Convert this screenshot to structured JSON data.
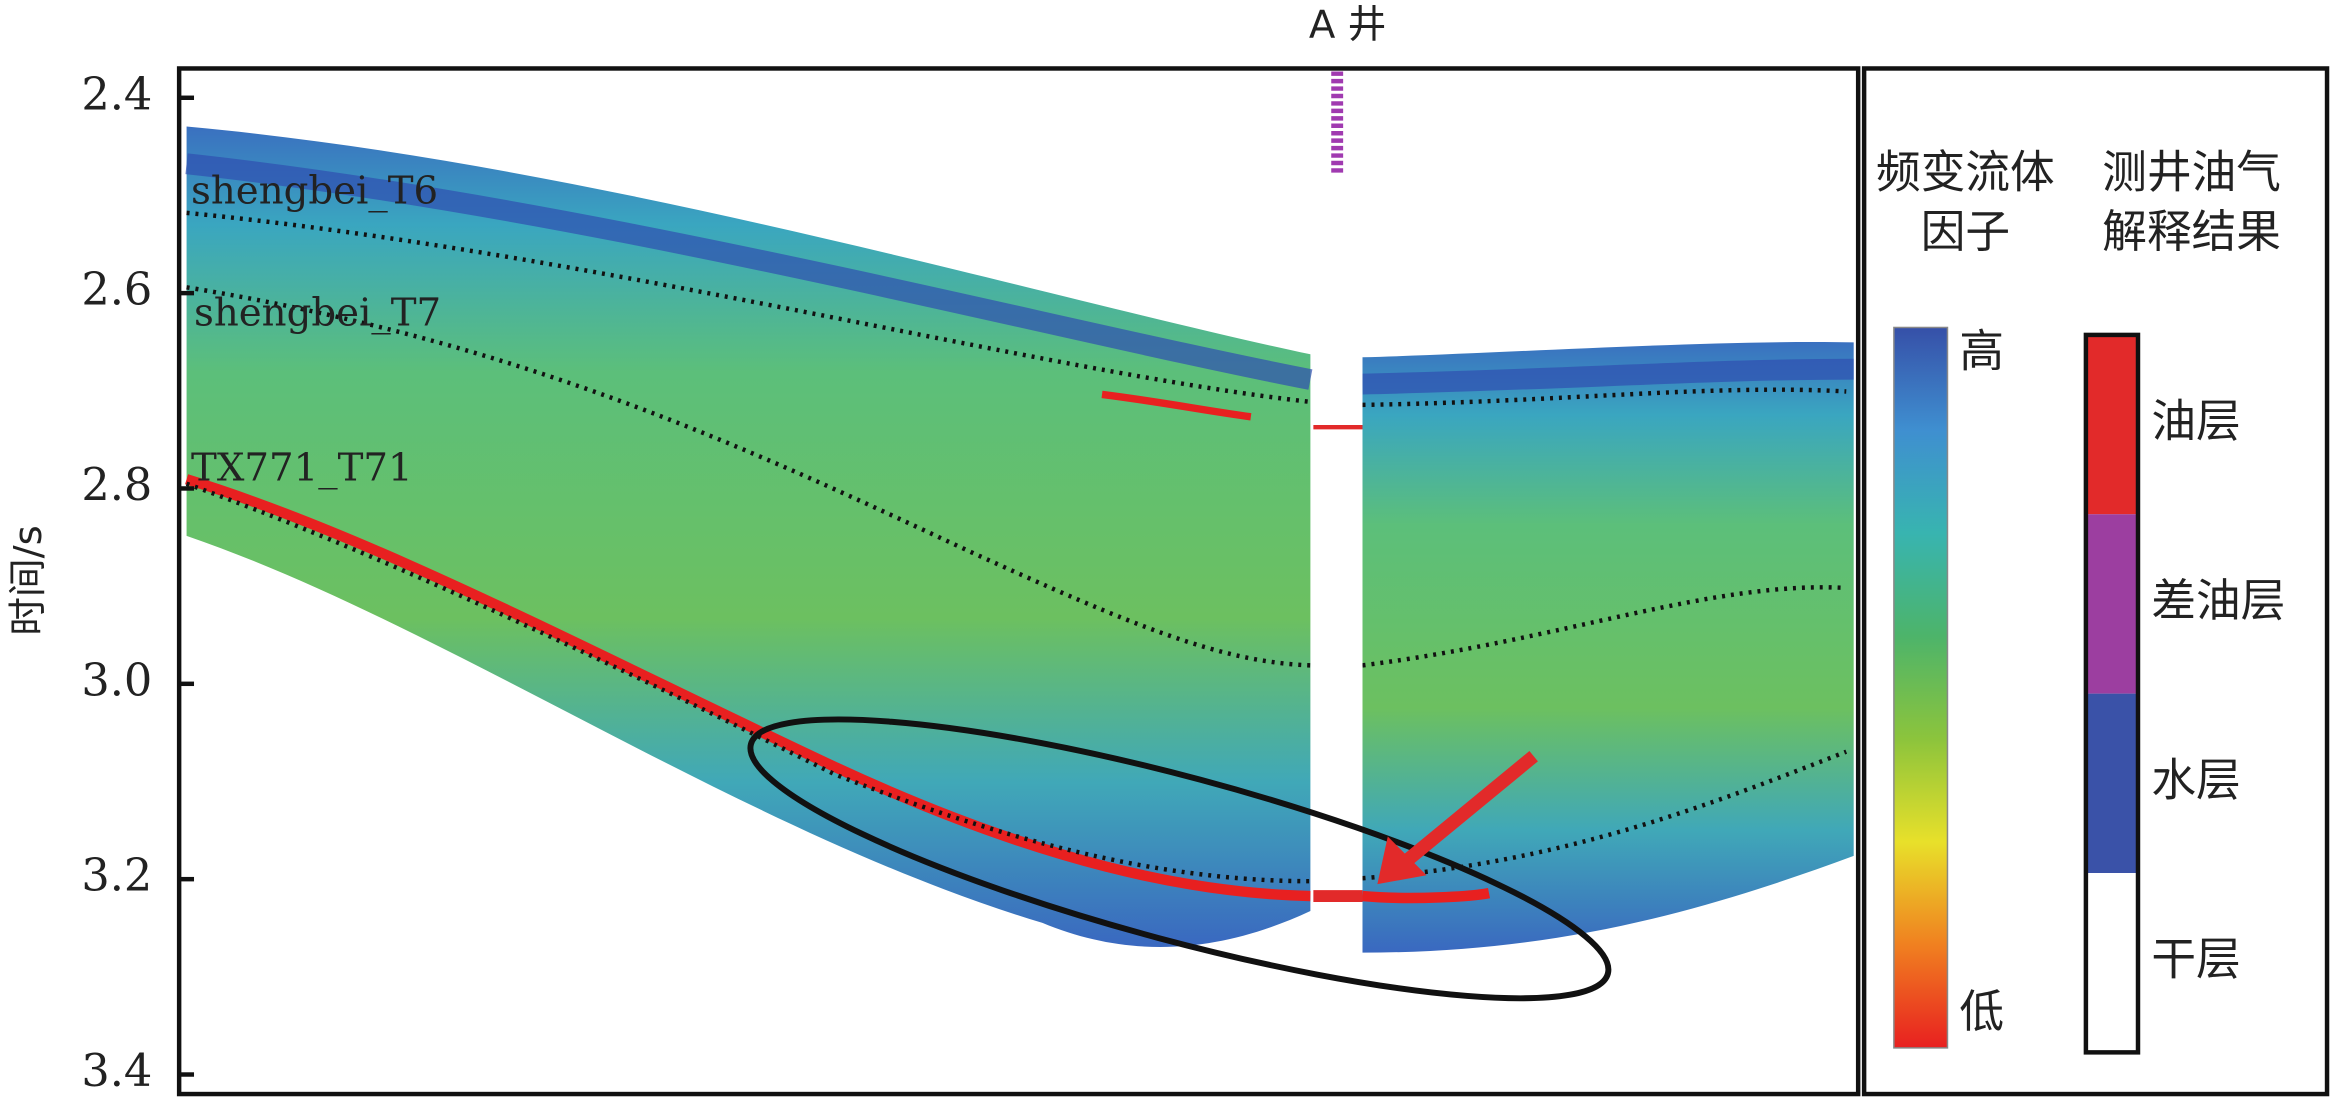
{
  "chart_data": {
    "type": "seismic-section",
    "title": "A 井",
    "y_label": "时间/s",
    "ylim": [
      2.37,
      3.42
    ],
    "yticks": [
      2.4,
      2.6,
      2.8,
      {
        "value": 3,
        "label": "3.0"
      },
      3.2,
      3.4
    ],
    "horizons": [
      "shengbei_T6",
      "shengbei_T7",
      "TX771_T71"
    ],
    "colorbar": {
      "title": [
        "频变流体",
        "因子"
      ],
      "high": "高",
      "low": "低",
      "colors": [
        "#3650a8",
        "#3f8fd0",
        "#38b4b0",
        "#4db46a",
        "#8cc43c",
        "#e8e02a",
        "#f08020",
        "#e82020"
      ]
    },
    "well_legend": {
      "title": [
        "测井油气",
        "解释结果"
      ],
      "categories": [
        "油层",
        "差油层",
        "水层",
        "干层"
      ],
      "colors": [
        "#e22a2a",
        "#9c3ea0",
        "#3a52a8",
        "#ffffff"
      ]
    }
  }
}
